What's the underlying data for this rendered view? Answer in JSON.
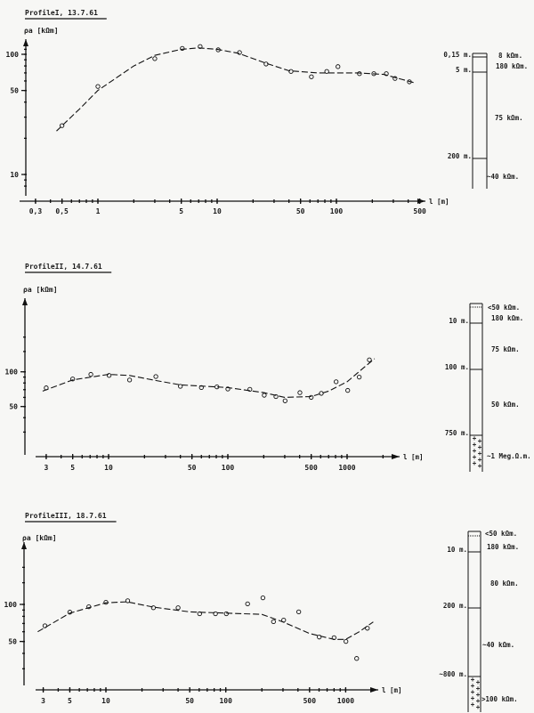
{
  "chart_data": [
    {
      "type": "scatter",
      "title": "ProfileI, 13.7.61",
      "ylabel": "ρa [kΩm]",
      "xlabel": "l [m]",
      "xscale": "log",
      "yscale": "log",
      "xticks": [
        {
          "v": 0.3,
          "label": "0,3"
        },
        {
          "v": 0.5,
          "label": "0,5"
        },
        {
          "v": 1,
          "label": "1"
        },
        {
          "v": 5,
          "label": "5"
        },
        {
          "v": 10,
          "label": "10"
        },
        {
          "v": 50,
          "label": "50"
        },
        {
          "v": 100,
          "label": "100"
        },
        {
          "v": 500,
          "label": "500"
        }
      ],
      "yticks": [
        {
          "v": 100,
          "label": "100"
        },
        {
          "v": 50,
          "label": "50"
        },
        {
          "v": 10,
          "label": "10"
        }
      ],
      "points": [
        [
          0.5,
          25.5
        ],
        [
          1,
          54
        ],
        [
          3,
          92
        ],
        [
          5.1,
          112
        ],
        [
          7.2,
          116
        ],
        [
          10.2,
          109
        ],
        [
          15.4,
          103.5
        ],
        [
          25.7,
          83
        ],
        [
          41.6,
          72
        ],
        [
          61.7,
          65
        ],
        [
          83,
          72
        ],
        [
          103,
          79
        ],
        [
          156,
          69
        ],
        [
          206,
          69
        ],
        [
          262,
          69
        ],
        [
          310,
          63
        ],
        [
          409,
          59
        ]
      ],
      "curve": [
        [
          0.45,
          23
        ],
        [
          0.7,
          35
        ],
        [
          1,
          50
        ],
        [
          2,
          80
        ],
        [
          3,
          98
        ],
        [
          5,
          110
        ],
        [
          7,
          113
        ],
        [
          10,
          110
        ],
        [
          15,
          102
        ],
        [
          25,
          85
        ],
        [
          40,
          73
        ],
        [
          70,
          70
        ],
        [
          150,
          70
        ],
        [
          250,
          68
        ],
        [
          350,
          62
        ],
        [
          450,
          58
        ]
      ],
      "column": {
        "depths": [
          {
            "label": "0,15 m."
          },
          {
            "label": "5 m."
          },
          {
            "label": "200 m."
          }
        ],
        "layers": [
          "8 kΩm.",
          "180 kΩm.",
          "75 kΩm.",
          "~40 kΩm."
        ]
      }
    },
    {
      "type": "scatter",
      "title": "ProfileII, 14.7.61",
      "ylabel": "ρa [kΩm]",
      "xlabel": "l [m]",
      "xscale": "log",
      "yscale": "log",
      "xticks": [
        {
          "v": 3,
          "label": "3"
        },
        {
          "v": 5,
          "label": "5"
        },
        {
          "v": 10,
          "label": "10"
        },
        {
          "v": 50,
          "label": "50"
        },
        {
          "v": 100,
          "label": "100"
        },
        {
          "v": 500,
          "label": "500"
        },
        {
          "v": 1000,
          "label": "1000"
        }
      ],
      "yticks": [
        {
          "v": 100,
          "label": "100"
        },
        {
          "v": 50,
          "label": "50"
        }
      ],
      "points": [
        [
          3,
          72.6
        ],
        [
          5,
          86.7
        ],
        [
          7.1,
          95
        ],
        [
          10.1,
          93
        ],
        [
          15,
          85
        ],
        [
          24.9,
          91
        ],
        [
          40,
          74.8
        ],
        [
          60,
          73
        ],
        [
          81,
          74
        ],
        [
          100,
          71
        ],
        [
          153,
          70.5
        ],
        [
          202,
          62.6
        ],
        [
          253,
          61
        ],
        [
          302,
          56
        ],
        [
          402,
          66
        ],
        [
          500,
          60
        ],
        [
          608,
          65
        ],
        [
          809,
          82
        ],
        [
          1012,
          69
        ],
        [
          1264,
          90
        ],
        [
          1537,
          127
        ]
      ],
      "curve": [
        [
          2.8,
          68
        ],
        [
          5,
          85
        ],
        [
          10,
          95
        ],
        [
          15,
          93
        ],
        [
          25,
          84
        ],
        [
          40,
          77
        ],
        [
          100,
          73
        ],
        [
          200,
          66
        ],
        [
          300,
          60
        ],
        [
          500,
          61
        ],
        [
          700,
          68
        ],
        [
          1000,
          82
        ],
        [
          1400,
          110
        ],
        [
          1700,
          130
        ]
      ],
      "column": {
        "depths": [
          {
            "label": "10 m."
          },
          {
            "label": "100 m."
          },
          {
            "label": "750 m."
          }
        ],
        "layers": [
          "<50 kΩm.",
          "180 kΩm.",
          "75 kΩm.",
          "50 kΩm.",
          "~1 Meg.Ω.m."
        ]
      }
    },
    {
      "type": "scatter",
      "title": "ProfileIII, 18.7.61",
      "ylabel": "ρa [kΩm]",
      "xlabel": "l [m]",
      "xscale": "log",
      "yscale": "log",
      "xticks": [
        {
          "v": 3,
          "label": "3"
        },
        {
          "v": 5,
          "label": "5"
        },
        {
          "v": 10,
          "label": "10"
        },
        {
          "v": 50,
          "label": "50"
        },
        {
          "v": 100,
          "label": "100"
        },
        {
          "v": 500,
          "label": "500"
        },
        {
          "v": 1000,
          "label": "1000"
        }
      ],
      "yticks": [
        {
          "v": 100,
          "label": "100"
        },
        {
          "v": 50,
          "label": "50"
        }
      ],
      "points": [
        [
          3.1,
          67
        ],
        [
          5,
          86.5
        ],
        [
          7.2,
          95.7
        ],
        [
          10,
          104
        ],
        [
          15.2,
          107
        ],
        [
          24.9,
          94
        ],
        [
          40,
          94
        ],
        [
          60.5,
          84
        ],
        [
          82,
          84
        ],
        [
          101,
          84
        ],
        [
          152,
          101
        ],
        [
          204,
          113
        ],
        [
          250,
          72.4
        ],
        [
          304,
          74.5
        ],
        [
          406,
          87
        ],
        [
          602,
          54.3
        ],
        [
          800,
          53.7
        ],
        [
          1005,
          50
        ],
        [
          1235,
          36.4
        ],
        [
          1517,
          64
        ]
      ],
      "curve": [
        [
          2.7,
          60
        ],
        [
          5,
          85
        ],
        [
          10,
          103
        ],
        [
          15,
          105
        ],
        [
          25,
          95
        ],
        [
          50,
          87
        ],
        [
          100,
          85
        ],
        [
          200,
          83
        ],
        [
          300,
          72
        ],
        [
          500,
          58
        ],
        [
          800,
          52
        ],
        [
          1000,
          52
        ],
        [
          1300,
          60
        ],
        [
          1700,
          72
        ]
      ],
      "column": {
        "depths": [
          {
            "label": "10 m."
          },
          {
            "label": "200 m."
          },
          {
            "label": "~800 m."
          }
        ],
        "layers": [
          "<50 kΩm.",
          "180 kΩm.",
          "80 kΩm.",
          "~40 kΩm.",
          ">100 kΩm."
        ]
      }
    }
  ]
}
